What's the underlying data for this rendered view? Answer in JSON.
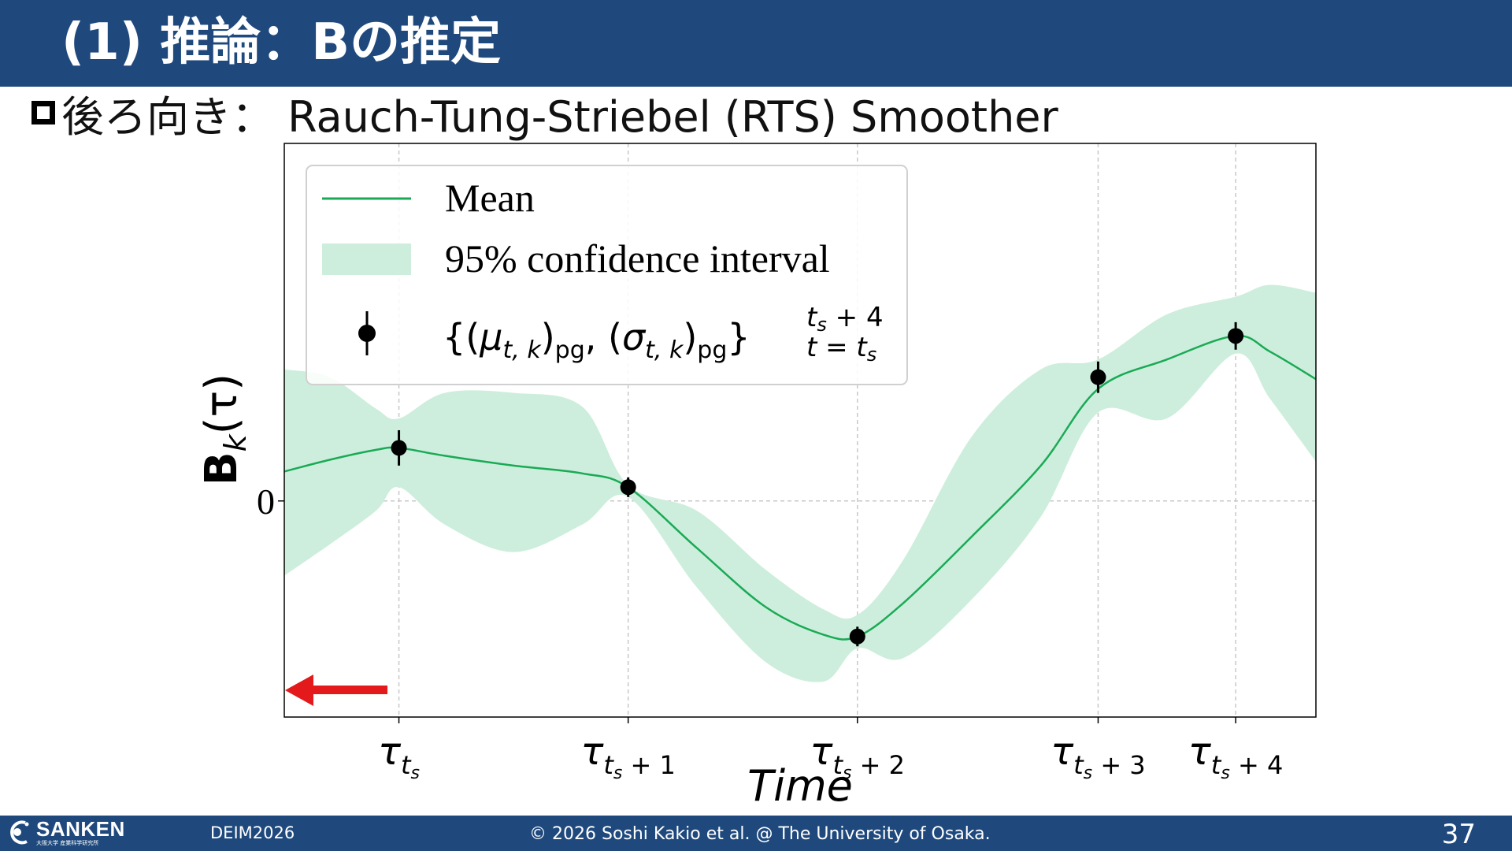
{
  "slide": {
    "title": "(1) 推論：Bの推定",
    "subtitle": "後ろ向き： Rauch-Tung-Striebel (RTS) Smoother",
    "footer_left": "DEIM2026",
    "footer_center": "© 2026 Soshi Kakio et al. @ The University of Osaka.",
    "page_number": "37",
    "logo_text": "SANKEN",
    "logo_subtext": "大阪大学 産業科学研究所"
  },
  "colors": {
    "header_bg": "#1f497d",
    "mean_line": "#1aaa55",
    "ci_fill": "#cdeedd",
    "point": "#000000",
    "arrow": "#e3191b"
  },
  "chart_data": {
    "type": "line",
    "title": "",
    "xlabel": "Time",
    "ylabel": "B_k(τ)",
    "ylabel_parts": {
      "main": "B",
      "sub": "k",
      "arg": "(τ)"
    },
    "xlim": [
      -0.5,
      4.0
    ],
    "ylim": [
      -1.1,
      1.82
    ],
    "xticks": [
      {
        "x": 0,
        "base": "τ",
        "sub": "t",
        "subsub": "s",
        "suffix": ""
      },
      {
        "x": 1,
        "base": "τ",
        "sub": "t",
        "subsub": "s",
        "suffix": "+ 1"
      },
      {
        "x": 2,
        "base": "τ",
        "sub": "t",
        "subsub": "s",
        "suffix": "+ 2"
      },
      {
        "x": 3.05,
        "base": "τ",
        "sub": "t",
        "subsub": "s",
        "suffix": "+ 3"
      },
      {
        "x": 3.65,
        "base": "τ",
        "sub": "t",
        "subsub": "s",
        "suffix": "+ 4"
      }
    ],
    "yticks": [
      {
        "y": 0,
        "label": "0"
      }
    ],
    "grid": true,
    "legend_position": "top-left",
    "series": [
      {
        "name": "Mean",
        "kind": "line",
        "x": [
          -0.5,
          -0.3,
          -0.1,
          0.0,
          0.2,
          0.5,
          0.8,
          1.0,
          1.3,
          1.6,
          1.85,
          2.0,
          2.2,
          2.5,
          2.8,
          3.05,
          3.35,
          3.65,
          3.8,
          4.0
        ],
        "y": [
          0.15,
          0.21,
          0.26,
          0.27,
          0.23,
          0.18,
          0.14,
          0.07,
          -0.24,
          -0.54,
          -0.68,
          -0.69,
          -0.52,
          -0.18,
          0.18,
          0.57,
          0.72,
          0.84,
          0.76,
          0.62
        ]
      },
      {
        "name": "95% confidence interval",
        "kind": "band",
        "x": [
          -0.5,
          -0.3,
          -0.1,
          0.0,
          0.2,
          0.5,
          0.8,
          1.0,
          1.3,
          1.6,
          1.85,
          2.0,
          2.2,
          2.5,
          2.8,
          3.05,
          3.35,
          3.65,
          3.8,
          4.0
        ],
        "lower": [
          -0.38,
          -0.22,
          -0.05,
          0.07,
          -0.12,
          -0.26,
          -0.12,
          0.02,
          -0.44,
          -0.82,
          -0.92,
          -0.75,
          -0.8,
          -0.5,
          -0.08,
          0.45,
          0.42,
          0.75,
          0.52,
          0.2
        ],
        "upper": [
          0.67,
          0.63,
          0.47,
          0.42,
          0.55,
          0.55,
          0.48,
          0.08,
          -0.05,
          -0.35,
          -0.55,
          -0.58,
          -0.3,
          0.33,
          0.67,
          0.72,
          0.95,
          1.04,
          1.1,
          1.06
        ]
      },
      {
        "name": "{(μ_{t,k})_pg, (σ_{t,k})_pg}_{t=t_s}^{t_s+4}",
        "kind": "errorbar",
        "x": [
          0,
          1,
          2,
          3.05,
          3.65
        ],
        "y": [
          0.27,
          0.07,
          -0.69,
          0.63,
          0.84
        ],
        "err": [
          0.09,
          0.05,
          0.05,
          0.08,
          0.07
        ]
      }
    ],
    "legend_entries": [
      {
        "label": "Mean"
      },
      {
        "label": "95% confidence interval"
      },
      {
        "label_parts": {
          "open": "{(",
          "mu": "μ",
          "mu_sub": "t, k",
          "pg": "pg",
          "sep": ", (",
          "sigma": "σ",
          "sigma_sub": "t, k",
          "pg2": "pg",
          "close": "}",
          "sup": "t",
          "sup_sub": "s",
          "sup_suffix": " + 4",
          "low": "t = t",
          "low_sub": "s"
        }
      }
    ],
    "annotation": {
      "type": "arrow",
      "direction": "left",
      "color": "#e3191b"
    }
  }
}
